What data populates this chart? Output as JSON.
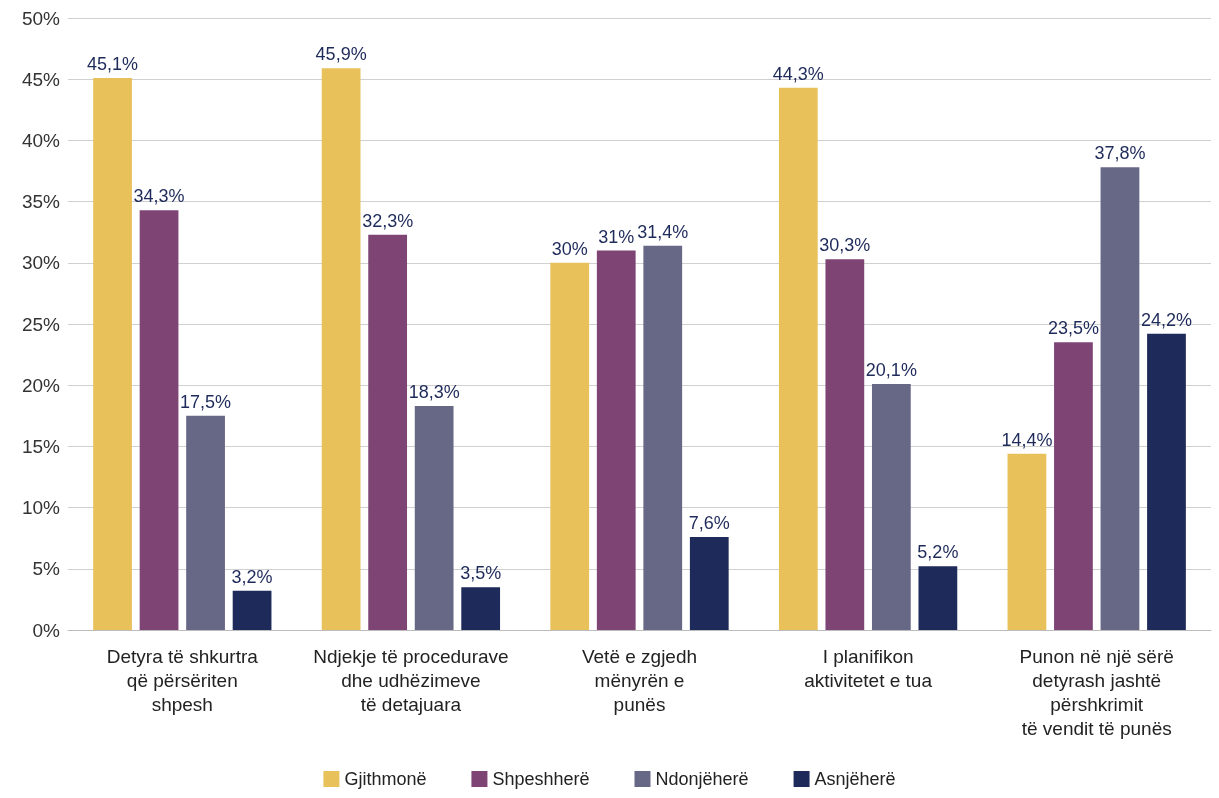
{
  "chart_data": {
    "type": "bar",
    "categories": [
      "Detyra të shkurtra\nqë përsëriten\nshpesh",
      "Ndjekje të procedurave\ndhe udhëzimeve\ntë detajuara",
      "Vetë e zgjedh\nmënyrën e\npunës",
      "I planifikon\naktivitetet e tua",
      "Punon në një sërë\ndetyrash jashtë\npërshkrimit\ntë vendit të punës"
    ],
    "series": [
      {
        "name": "Gjithmonë",
        "color": "#e8c15a",
        "values": [
          45.1,
          45.9,
          30,
          44.3,
          14.4
        ],
        "value_labels": [
          "45,1%",
          "45,9%",
          "30%",
          "44,3%",
          "14,4%"
        ]
      },
      {
        "name": "Shpeshherë",
        "color": "#7d4474",
        "values": [
          34.3,
          32.3,
          31,
          30.3,
          23.5
        ],
        "value_labels": [
          "34,3%",
          "32,3%",
          "31%",
          "30,3%",
          "23,5%"
        ]
      },
      {
        "name": "Ndonjëherë",
        "color": "#676786",
        "values": [
          17.5,
          18.3,
          31.4,
          20.1,
          37.8
        ],
        "value_labels": [
          "17,5%",
          "18,3%",
          "31,4%",
          "20,1%",
          "37,8%"
        ]
      },
      {
        "name": "Asnjëherë",
        "color": "#1e2a5a",
        "values": [
          3.2,
          3.5,
          7.6,
          5.2,
          24.2
        ],
        "value_labels": [
          "3,2%",
          "3,5%",
          "7,6%",
          "5,2%",
          "24,2%"
        ]
      }
    ],
    "ylim": [
      0,
      50
    ],
    "yticks": [
      {
        "value": 0,
        "label": "0%"
      },
      {
        "value": 5,
        "label": "5%"
      },
      {
        "value": 10,
        "label": "10%"
      },
      {
        "value": 15,
        "label": "15%"
      },
      {
        "value": 20,
        "label": "20%"
      },
      {
        "value": 25,
        "label": "25%"
      },
      {
        "value": 30,
        "label": "30%"
      },
      {
        "value": 35,
        "label": "35%"
      },
      {
        "value": 40,
        "label": "40%"
      },
      {
        "value": 45,
        "label": "45%"
      },
      {
        "value": 50,
        "label": "50%"
      }
    ],
    "grid": "y",
    "legend": "bottom"
  }
}
